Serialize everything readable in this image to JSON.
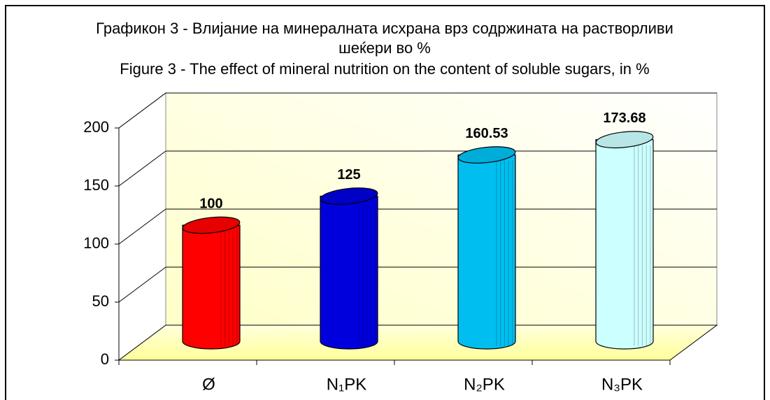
{
  "chart_data": {
    "type": "bar",
    "title": [
      "Графикон 3 - Влијание на минералната исхрана врз содржината на растворливи",
      "шеќери во %",
      "Figure 3  - The effect of mineral nutrition on the content of soluble sugars, in %"
    ],
    "categories": [
      "Ø",
      "N₁PK",
      "N₂PK",
      "N₃PK"
    ],
    "values": [
      100,
      125,
      160.53,
      173.68
    ],
    "colors": [
      "#ff0000",
      "#0000dd",
      "#00bff0",
      "#ccffff"
    ],
    "ylim": [
      0,
      200
    ],
    "yticks": [
      0,
      50,
      100,
      150,
      200
    ],
    "grid": true
  }
}
